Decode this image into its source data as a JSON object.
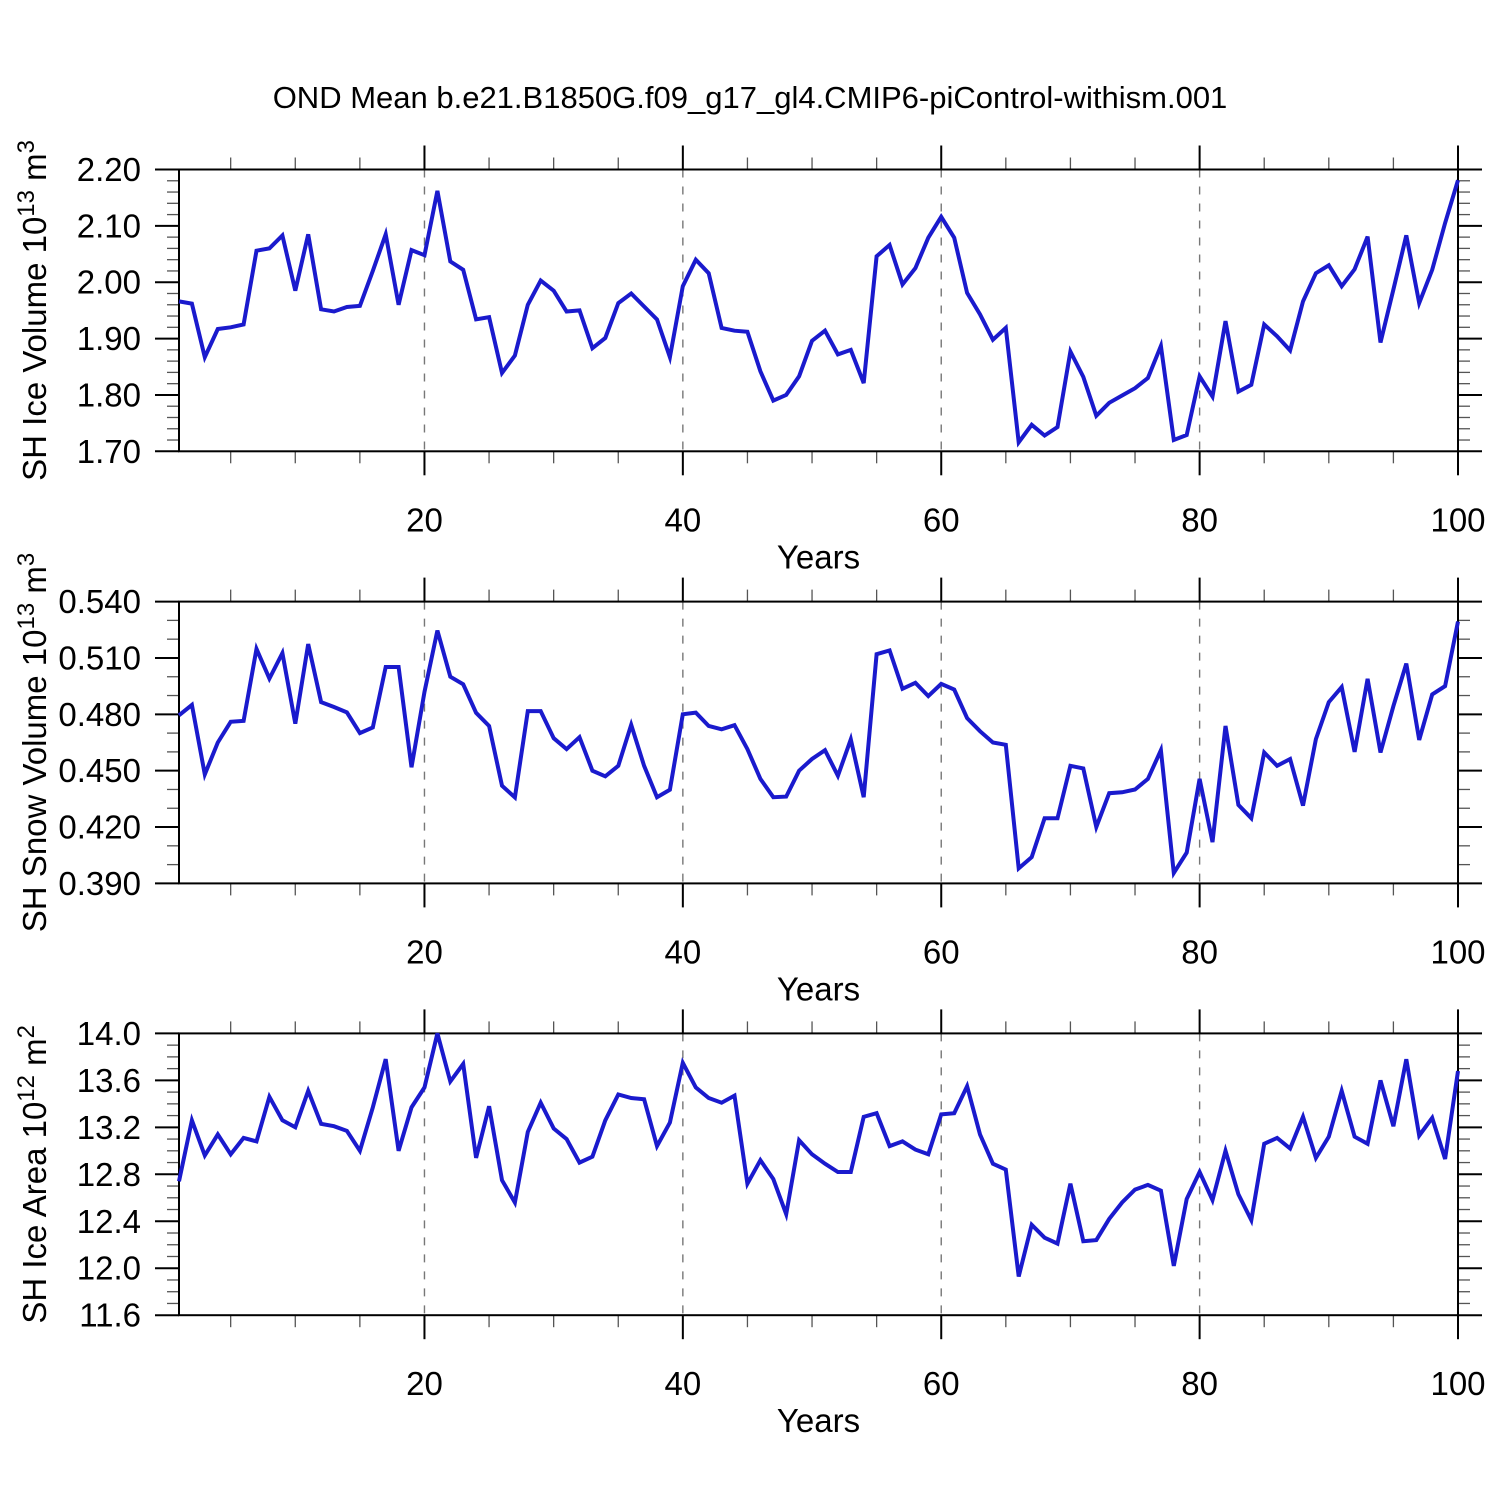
{
  "title": "OND Mean b.e21.B1850G.f09_g17_gl4.CMIP6-piControl-withism.001",
  "line_color": "#1a1acd",
  "grid_color": "#777777",
  "axis_color": "#000000",
  "minor_tick_color": "#555555",
  "chart_data": [
    {
      "type": "line",
      "id": "sh-ice-volume",
      "ylabel": "SH Ice Volume 10^13 m^3",
      "ylabel_parts": [
        {
          "t": "SH Ice Volume 10"
        },
        {
          "t": "13",
          "sup": true
        },
        {
          "t": " m"
        },
        {
          "t": "3",
          "sup": true
        }
      ],
      "xlabel": "Years",
      "ylim": [
        1.7,
        2.2
      ],
      "yticks": [
        2.2,
        2.1,
        2.0,
        1.9,
        1.8,
        1.7
      ],
      "ytick_labels": [
        "2.20",
        "2.10",
        "2.00",
        "1.90",
        "1.80",
        "1.70"
      ],
      "y_minor_step": 0.02,
      "xlim": [
        1,
        100
      ],
      "xticks": [
        20,
        40,
        60,
        80,
        100
      ],
      "xtick_labels": [
        "20",
        "40",
        "60",
        "80",
        "100"
      ],
      "x_minor_step": 5,
      "gridlines_x": [
        20,
        40,
        60,
        80
      ],
      "values": [
        1.966,
        1.962,
        1.867,
        1.917,
        1.92,
        1.925,
        2.056,
        2.06,
        2.083,
        1.985,
        2.085,
        1.952,
        1.948,
        1.956,
        1.958,
        2.02,
        2.085,
        1.96,
        2.057,
        2.048,
        2.162,
        2.037,
        2.022,
        1.934,
        1.938,
        1.839,
        1.87,
        1.96,
        2.003,
        1.985,
        1.948,
        1.95,
        1.883,
        1.901,
        1.963,
        1.98,
        1.957,
        1.934,
        1.867,
        1.993,
        2.04,
        2.016,
        1.919,
        1.914,
        1.912,
        1.842,
        1.79,
        1.8,
        1.833,
        1.896,
        1.914,
        1.872,
        1.88,
        1.821,
        2.046,
        2.066,
        1.996,
        2.025,
        2.079,
        2.116,
        2.079,
        1.981,
        1.943,
        1.898,
        1.919,
        1.716,
        1.747,
        1.728,
        1.743,
        1.877,
        1.832,
        1.763,
        1.786,
        1.799,
        1.812,
        1.83,
        1.887,
        1.72,
        1.729,
        1.833,
        1.797,
        1.931,
        1.806,
        1.818,
        1.925,
        1.904,
        1.879,
        1.966,
        2.016,
        2.03,
        1.993,
        2.023,
        2.081,
        1.893,
        1.987,
        2.083,
        1.963,
        2.022,
        2.105,
        2.181
      ]
    },
    {
      "type": "line",
      "id": "sh-snow-volume",
      "ylabel": "SH Snow Volume 10^13 m^3",
      "ylabel_parts": [
        {
          "t": "SH Snow Volume 10"
        },
        {
          "t": "13",
          "sup": true
        },
        {
          "t": " m"
        },
        {
          "t": "3",
          "sup": true
        }
      ],
      "xlabel": "Years",
      "ylim": [
        0.39,
        0.54
      ],
      "yticks": [
        0.54,
        0.51,
        0.48,
        0.45,
        0.42,
        0.39
      ],
      "ytick_labels": [
        "0.540",
        "0.510",
        "0.480",
        "0.450",
        "0.420",
        "0.390"
      ],
      "y_minor_step": 0.01,
      "xlim": [
        1,
        100
      ],
      "xticks": [
        20,
        40,
        60,
        80,
        100
      ],
      "xtick_labels": [
        "20",
        "40",
        "60",
        "80",
        "100"
      ],
      "x_minor_step": 5,
      "gridlines_x": [
        20,
        40,
        60,
        80
      ],
      "values": [
        0.4795,
        0.485,
        0.448,
        0.465,
        0.476,
        0.4765,
        0.5148,
        0.499,
        0.5126,
        0.475,
        0.5174,
        0.4865,
        0.4839,
        0.481,
        0.47,
        0.473,
        0.5052,
        0.5052,
        0.4518,
        0.492,
        0.5246,
        0.5,
        0.496,
        0.4808,
        0.4738,
        0.442,
        0.4358,
        0.4817,
        0.4817,
        0.4673,
        0.4615,
        0.4678,
        0.45,
        0.447,
        0.4526,
        0.4744,
        0.4526,
        0.4359,
        0.4399,
        0.48,
        0.4809,
        0.4738,
        0.472,
        0.4742,
        0.4615,
        0.4456,
        0.4359,
        0.4362,
        0.45,
        0.4562,
        0.4609,
        0.4473,
        0.4667,
        0.4359,
        0.512,
        0.514,
        0.4936,
        0.4968,
        0.4897,
        0.4962,
        0.4932,
        0.478,
        0.471,
        0.465,
        0.4638,
        0.398,
        0.404,
        0.4247,
        0.4247,
        0.4526,
        0.4512,
        0.42,
        0.438,
        0.4385,
        0.44,
        0.4456,
        0.4609,
        0.3956,
        0.4064,
        0.4456,
        0.412,
        0.4738,
        0.4318,
        0.4247,
        0.4597,
        0.4526,
        0.4562,
        0.4314,
        0.4668,
        0.4865,
        0.4945,
        0.46,
        0.4989,
        0.4597,
        0.4844,
        0.507,
        0.4664,
        0.4906,
        0.495,
        0.5294
      ]
    },
    {
      "type": "line",
      "id": "sh-ice-area",
      "ylabel": "SH Ice Area 10^12 m^2",
      "ylabel_parts": [
        {
          "t": "SH Ice Area 10"
        },
        {
          "t": "12",
          "sup": true
        },
        {
          "t": " m"
        },
        {
          "t": "2",
          "sup": true
        }
      ],
      "xlabel": "Years",
      "ylim": [
        11.6,
        14.0
      ],
      "yticks": [
        14.0,
        13.6,
        13.2,
        12.8,
        12.4,
        12.0,
        11.6
      ],
      "ytick_labels": [
        "14.0",
        "13.6",
        "13.2",
        "12.8",
        "12.4",
        "12.0",
        "11.6"
      ],
      "y_minor_step": 0.1,
      "xlim": [
        1,
        100
      ],
      "xticks": [
        20,
        40,
        60,
        80,
        100
      ],
      "xtick_labels": [
        "20",
        "40",
        "60",
        "80",
        "100"
      ],
      "x_minor_step": 5,
      "gridlines_x": [
        20,
        40,
        60,
        80
      ],
      "values": [
        12.74,
        13.26,
        12.96,
        13.14,
        12.97,
        13.11,
        13.08,
        13.46,
        13.26,
        13.2,
        13.51,
        13.23,
        13.21,
        13.17,
        13.0,
        13.37,
        13.78,
        13.0,
        13.37,
        13.54,
        14.0,
        13.59,
        13.74,
        12.94,
        13.38,
        12.75,
        12.56,
        13.16,
        13.41,
        13.19,
        13.1,
        12.9,
        12.95,
        13.26,
        13.48,
        13.45,
        13.44,
        13.04,
        13.24,
        13.75,
        13.54,
        13.45,
        13.41,
        13.47,
        12.72,
        12.92,
        12.76,
        12.46,
        13.09,
        12.97,
        12.89,
        12.82,
        12.82,
        13.29,
        13.32,
        13.04,
        13.08,
        13.01,
        12.97,
        13.31,
        13.32,
        13.55,
        13.14,
        12.89,
        12.84,
        11.93,
        12.37,
        12.26,
        12.21,
        12.72,
        12.23,
        12.24,
        12.42,
        12.56,
        12.67,
        12.71,
        12.66,
        12.02,
        12.59,
        12.82,
        12.58,
        13.0,
        12.63,
        12.41,
        13.06,
        13.11,
        13.02,
        13.29,
        12.94,
        13.12,
        13.51,
        13.12,
        13.06,
        13.6,
        13.21,
        13.78,
        13.13,
        13.28,
        12.93,
        13.68
      ]
    }
  ],
  "years": [
    1,
    2,
    3,
    4,
    5,
    6,
    7,
    8,
    9,
    10,
    11,
    12,
    13,
    14,
    15,
    16,
    17,
    18,
    19,
    20,
    21,
    22,
    23,
    24,
    25,
    26,
    27,
    28,
    29,
    30,
    31,
    32,
    33,
    34,
    35,
    36,
    37,
    38,
    39,
    40,
    41,
    42,
    43,
    44,
    45,
    46,
    47,
    48,
    49,
    50,
    51,
    52,
    53,
    54,
    55,
    56,
    57,
    58,
    59,
    60,
    61,
    62,
    63,
    64,
    65,
    66,
    67,
    68,
    69,
    70,
    71,
    72,
    73,
    74,
    75,
    76,
    77,
    78,
    79,
    80,
    81,
    82,
    83,
    84,
    85,
    86,
    87,
    88,
    89,
    90,
    91,
    92,
    93,
    94,
    95,
    96,
    97,
    98,
    99,
    100
  ]
}
